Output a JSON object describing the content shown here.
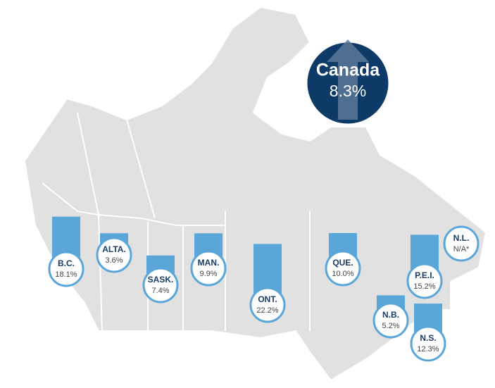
{
  "chart_data": {
    "type": "bar",
    "categories": [
      "B.C.",
      "ALTA.",
      "SASK.",
      "MAN.",
      "ONT.",
      "QUE.",
      "P.E.I.",
      "N.B.",
      "N.S.",
      "N.L."
    ],
    "values": [
      18.1,
      3.6,
      7.4,
      9.9,
      22.2,
      10.0,
      15.2,
      5.2,
      12.3,
      null
    ],
    "value_labels": [
      "18.1%",
      "3.6%",
      "7.4%",
      "9.9%",
      "22.2%",
      "10.0%",
      "15.2%",
      "5.2%",
      "12.3%",
      "N/A*"
    ],
    "color": "#5aa6d9",
    "national": {
      "label": "Canada",
      "value": 8.3,
      "value_label": "8.3%",
      "color": "#0d3a66"
    }
  }
}
